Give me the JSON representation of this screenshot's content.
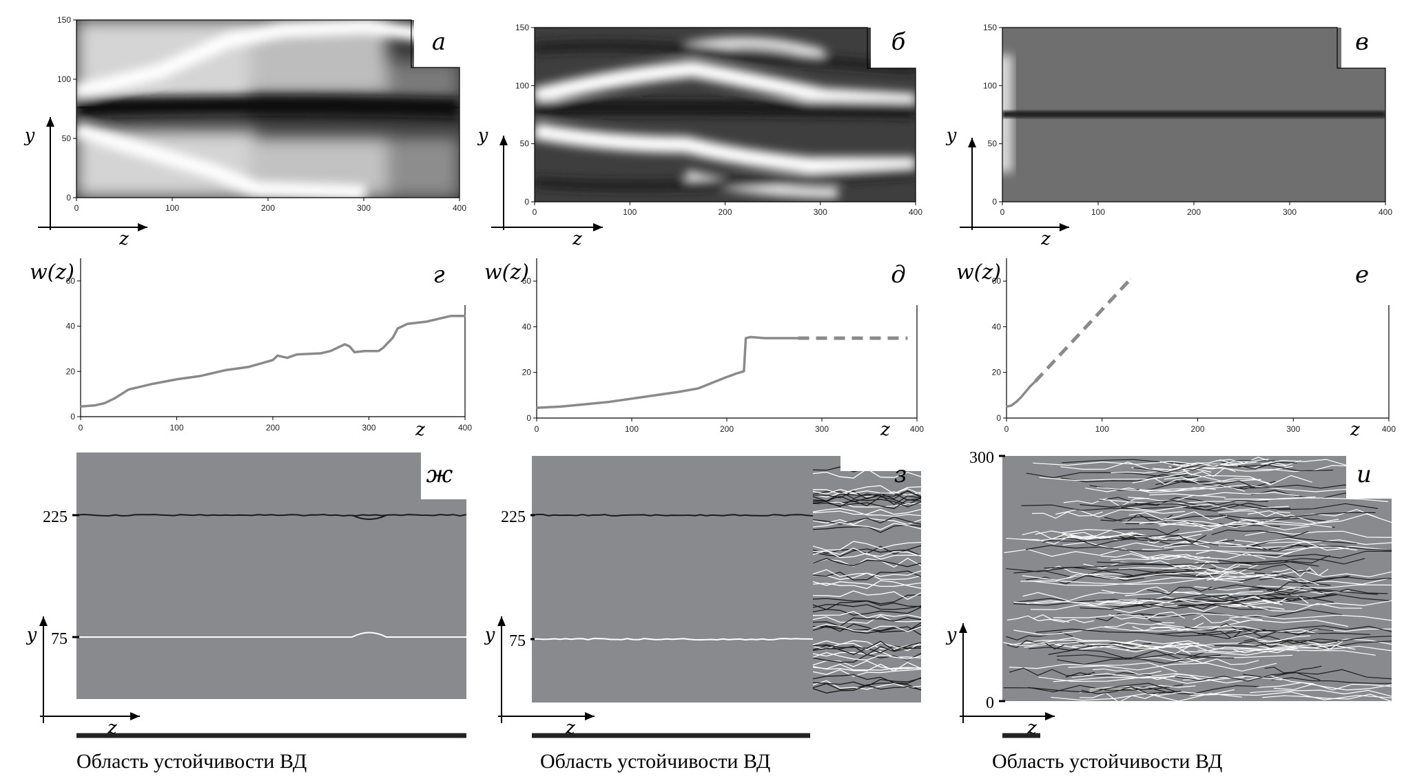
{
  "figure": {
    "colors": {
      "gray_panel": "#888a8d",
      "curve": "#8a8a8a",
      "bar": "#222222"
    },
    "panels": [
      {
        "id": "a",
        "letter": "а",
        "type": "heatmap",
        "variant": "a",
        "x_ticks": [
          "0",
          "100",
          "200",
          "300",
          "400"
        ],
        "y_ticks": [
          "0",
          "50",
          "100",
          "150"
        ],
        "axis_x": "z",
        "axis_y": "y"
      },
      {
        "id": "b",
        "letter": "б",
        "type": "heatmap",
        "variant": "b",
        "x_ticks": [
          "0",
          "100",
          "200",
          "300",
          "400"
        ],
        "y_ticks": [
          "0",
          "50",
          "100",
          "150"
        ],
        "axis_x": "z",
        "axis_y": "y"
      },
      {
        "id": "v",
        "letter": "в",
        "type": "heatmap",
        "variant": "v",
        "x_ticks": [
          "0",
          "100",
          "200",
          "300",
          "400"
        ],
        "y_ticks": [
          "0",
          "50",
          "100",
          "150"
        ],
        "axis_x": "z",
        "axis_y": "y"
      },
      {
        "id": "g",
        "letter": "г",
        "type": "line",
        "ylabel": "w(z)",
        "xlabel": "z",
        "x_ticks": [
          "0",
          "100",
          "200",
          "300",
          "400"
        ],
        "y_ticks": [
          "0",
          "20",
          "40",
          "60"
        ]
      },
      {
        "id": "d",
        "letter": "д",
        "type": "line",
        "ylabel": "w(z)",
        "xlabel": "z",
        "x_ticks": [
          "0",
          "100",
          "200",
          "300",
          "400"
        ],
        "y_ticks": [
          "0",
          "20",
          "40",
          "60"
        ]
      },
      {
        "id": "e",
        "letter": "е",
        "type": "line",
        "ylabel": "w(z)",
        "xlabel": "z",
        "x_ticks": [
          "0",
          "100",
          "200",
          "300",
          "400"
        ],
        "y_ticks": [
          "0",
          "20",
          "40",
          "60"
        ]
      },
      {
        "id": "zh",
        "letter": "ж",
        "type": "trajectories",
        "marks": [
          "225",
          "75"
        ],
        "axis_x": "z",
        "axis_y": "y",
        "caption": "Область устойчивости ВД"
      },
      {
        "id": "z",
        "letter": "з",
        "type": "trajectories",
        "marks": [
          "225",
          "75"
        ],
        "axis_x": "z",
        "axis_y": "y",
        "caption": "Область устойчивости ВД"
      },
      {
        "id": "i",
        "letter": "и",
        "type": "trajectories",
        "marks": [
          "300",
          "0"
        ],
        "axis_x": "z",
        "axis_y": "y",
        "caption": "Область устойчивости ВД"
      }
    ]
  },
  "chart_data": [
    {
      "type": "line",
      "panel": "г",
      "xlabel": "z",
      "ylabel": "w(z)",
      "xlim": [
        0,
        400
      ],
      "ylim": [
        0,
        70
      ],
      "series": [
        {
          "style": "solid",
          "x": [
            0,
            15,
            25,
            35,
            50,
            75,
            100,
            125,
            150,
            175,
            200,
            205,
            215,
            225,
            250,
            260,
            275,
            280,
            285,
            295,
            310,
            315,
            325,
            330,
            340,
            360,
            375,
            385,
            400
          ],
          "y": [
            4.5,
            5,
            6,
            8,
            12,
            14.5,
            16.5,
            18,
            20.5,
            22,
            25,
            27,
            26,
            27.5,
            28,
            29,
            32,
            31,
            28.5,
            29,
            29,
            30.5,
            35,
            39,
            41,
            42,
            43.5,
            44.5,
            44.5
          ]
        }
      ]
    },
    {
      "type": "line",
      "panel": "д",
      "xlabel": "z",
      "ylabel": "w(z)",
      "xlim": [
        0,
        400
      ],
      "ylim": [
        0,
        70
      ],
      "series": [
        {
          "style": "solid",
          "x": [
            0,
            25,
            50,
            75,
            100,
            125,
            150,
            170,
            185,
            200,
            210,
            218,
            220,
            225,
            240,
            255,
            275
          ],
          "y": [
            4.5,
            5,
            6,
            7,
            8.5,
            10,
            11.5,
            13,
            15.5,
            18,
            19.5,
            20.5,
            35,
            35.5,
            35,
            35,
            35
          ]
        },
        {
          "style": "dashed",
          "x": [
            275,
            390
          ],
          "y": [
            35,
            35
          ]
        }
      ]
    },
    {
      "type": "line",
      "panel": "е",
      "xlabel": "z",
      "ylabel": "w(z)",
      "xlim": [
        0,
        400
      ],
      "ylim": [
        0,
        70
      ],
      "series": [
        {
          "style": "solid",
          "x": [
            0,
            5,
            10,
            15,
            20,
            25,
            30
          ],
          "y": [
            5,
            5.5,
            7,
            9,
            11.5,
            14,
            16
          ]
        },
        {
          "style": "dashed",
          "x": [
            30,
            130
          ],
          "y": [
            16,
            61
          ]
        }
      ]
    }
  ]
}
